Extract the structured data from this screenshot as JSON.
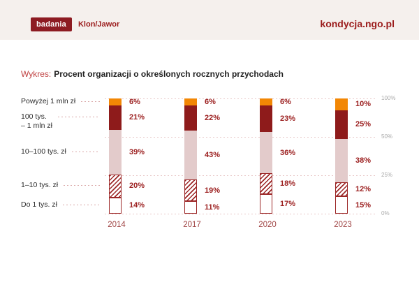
{
  "header": {
    "badge_label": "badania",
    "brand": "Klon/Jawor",
    "site": "kondycja.ngo.pl"
  },
  "title": {
    "prefix": "Wykres:",
    "text": "Procent organizacji o określonych rocznych przychodach"
  },
  "colors": {
    "accent": "#9B1C1C",
    "badge_bg": "#8D1B22",
    "header_bg": "#F5F0ED",
    "title_prefix": "#BF4040",
    "title_text": "#1F1F1F"
  },
  "chart_data": {
    "type": "bar",
    "stacked": true,
    "orientation": "vertical",
    "title": "Procent organizacji o określonych rocznych przychodach",
    "categories": [
      "2014",
      "2017",
      "2020",
      "2023"
    ],
    "series": [
      {
        "name": "Powyżej 1 mln zł",
        "display_label": "Powyżej 1 mln zł",
        "values": [
          6,
          6,
          6,
          10
        ],
        "color": "#F28705",
        "pattern": "solid"
      },
      {
        "name": "100 tys. – 1 mln zł",
        "display_label": "100 tys.\n– 1 mln zł",
        "values": [
          21,
          22,
          23,
          25
        ],
        "color": "#8E1B1B",
        "pattern": "solid"
      },
      {
        "name": "10–100 tys. zł",
        "display_label": "10–100 tys. zł",
        "values": [
          39,
          43,
          36,
          38
        ],
        "color": "#E3CBCB",
        "pattern": "solid"
      },
      {
        "name": "1–10 tys. zł",
        "display_label": "1–10 tys. zł",
        "values": [
          20,
          19,
          18,
          12
        ],
        "color": "#FFFFFF",
        "pattern": "hatch"
      },
      {
        "name": "Do 1 tys. zł",
        "display_label": "Do 1 tys. zł",
        "values": [
          14,
          11,
          17,
          15
        ],
        "color": "#FFFFFF",
        "pattern": "plain-border"
      }
    ],
    "value_suffix": "%",
    "y_ticks": [
      "100%",
      "50%",
      "25%",
      "0%"
    ],
    "ylim": [
      0,
      100
    ],
    "grid": "dotted-horizontal",
    "legend_position": "left-labels",
    "style": {
      "stripe": "#9C2727",
      "segment_border": "#9C2727",
      "grid": "#E8C7C7",
      "axis_label": "#A9A9A9",
      "value_label": "#9C2020",
      "year_label": "#A04545",
      "cat_label": "#2B2B2B",
      "leader": "#D9A6A6"
    }
  }
}
